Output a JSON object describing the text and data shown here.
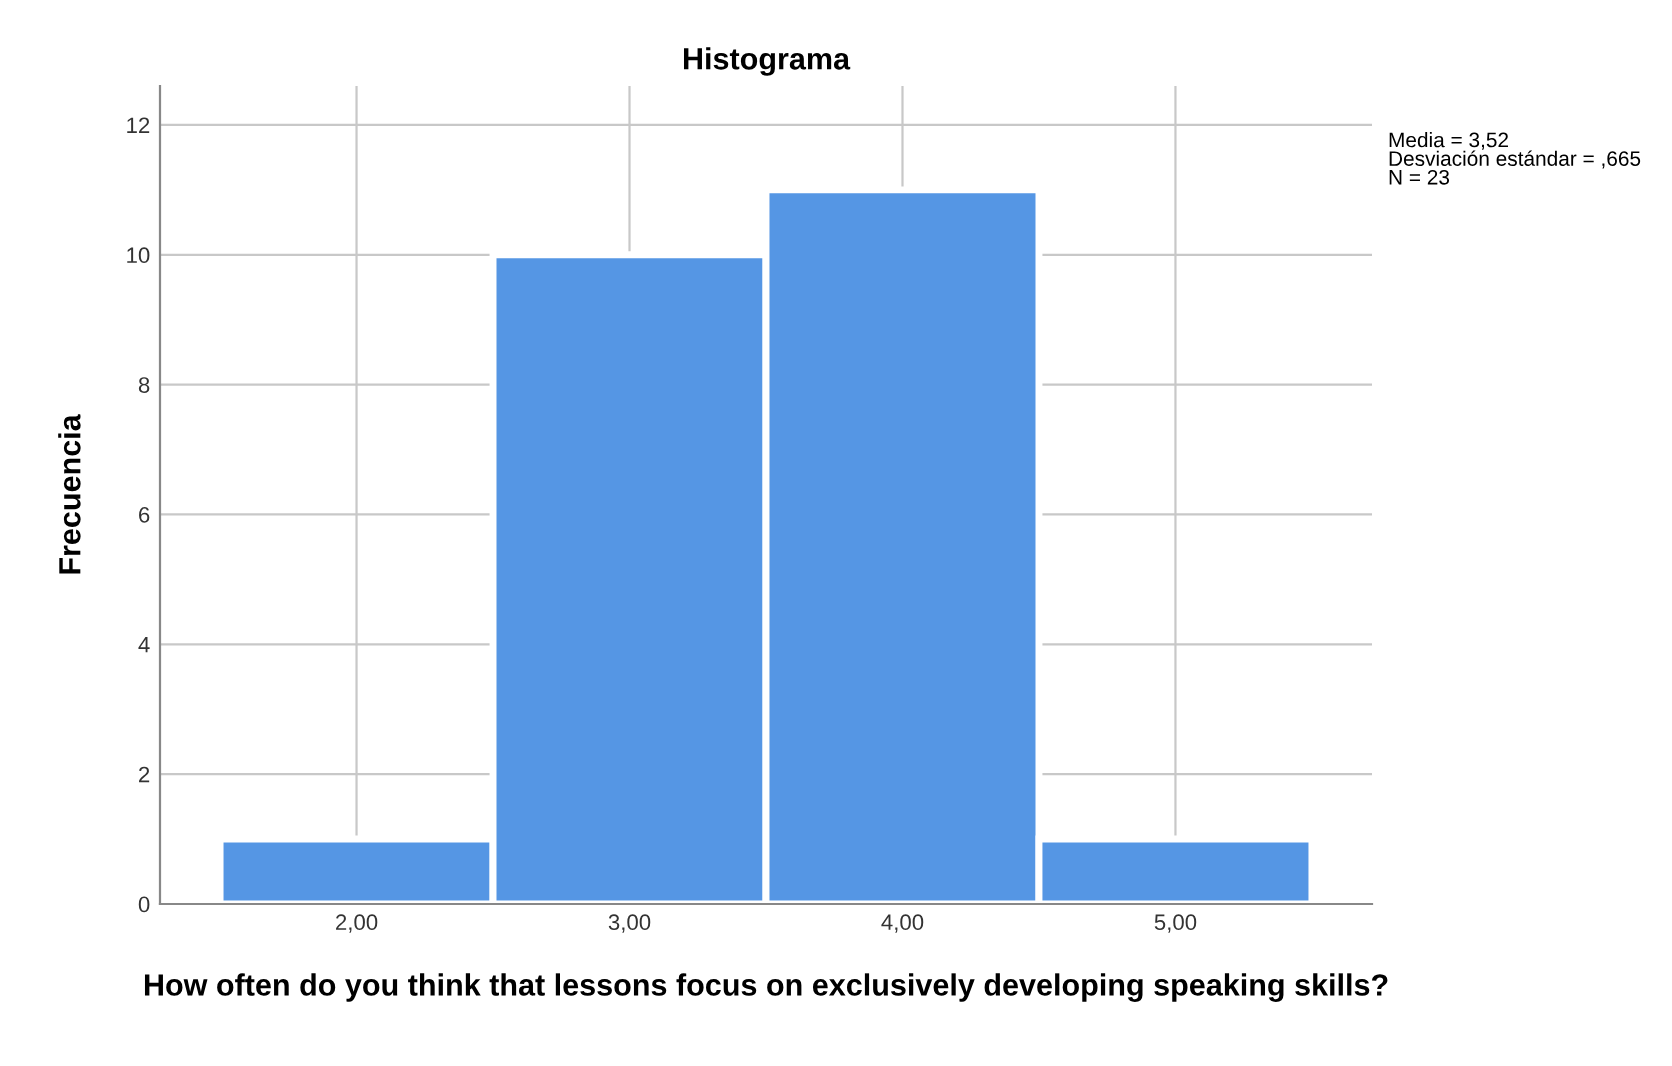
{
  "chart_data": {
    "type": "histogram",
    "title": "Histograma",
    "xlabel": "How often do you think that lessons focus on exclusively developing speaking skills?",
    "ylabel": "Frecuencia",
    "bins": [
      1.5,
      2.5,
      3.5,
      4.5,
      5.5
    ],
    "values": [
      1,
      10,
      11,
      1
    ],
    "color": "#5596e4",
    "xlim": [
      1.28,
      5.72
    ],
    "ylim": [
      0,
      12.6
    ],
    "xticks": [
      {
        "value": 2,
        "label": "2,00"
      },
      {
        "value": 3,
        "label": "3,00"
      },
      {
        "value": 4,
        "label": "4,00"
      },
      {
        "value": 5,
        "label": "5,00"
      }
    ],
    "yticks": [
      0,
      2,
      4,
      6,
      8,
      10,
      12
    ],
    "grid": true,
    "annotations": [
      "Media = 3,52\nDesviación estándar = ,665\nN = 23"
    ]
  }
}
